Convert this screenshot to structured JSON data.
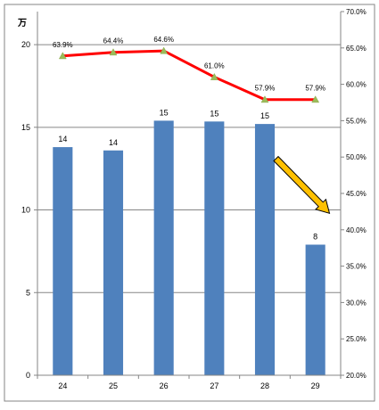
{
  "chart_data": {
    "type": "bar",
    "categories": [
      "24",
      "25",
      "26",
      "27",
      "28",
      "29"
    ],
    "left_axis": {
      "unit_label": "万",
      "ylim": [
        0,
        22
      ],
      "ticks": [
        0,
        5,
        10,
        15,
        20
      ]
    },
    "right_axis": {
      "ylim": [
        20,
        70
      ],
      "ticks": [
        "20.0%",
        "25.0%",
        "30.0%",
        "35.0%",
        "40.0%",
        "45.0%",
        "50.0%",
        "55.0%",
        "60.0%",
        "65.0%",
        "70.0%"
      ]
    },
    "series": [
      {
        "type": "bar",
        "axis": "left",
        "color": "#4f81bd",
        "values": [
          13.8,
          13.6,
          15.4,
          15.35,
          15.2,
          7.9
        ],
        "data_labels": [
          "14",
          "14",
          "15",
          "15",
          "15",
          "8"
        ]
      },
      {
        "type": "line",
        "axis": "right",
        "color": "#ff0000",
        "marker_color": "#9bbb59",
        "values": [
          63.9,
          64.4,
          64.6,
          61.0,
          57.9,
          57.9
        ],
        "data_labels": [
          "63.9%",
          "64.4%",
          "64.6%",
          "61.0%",
          "57.9%",
          "57.9%"
        ]
      }
    ],
    "annotation": {
      "type": "arrow",
      "color": "#ffc000",
      "from_category": "28",
      "to_category": "29",
      "direction": "down"
    },
    "grid": true,
    "legend": "none"
  }
}
